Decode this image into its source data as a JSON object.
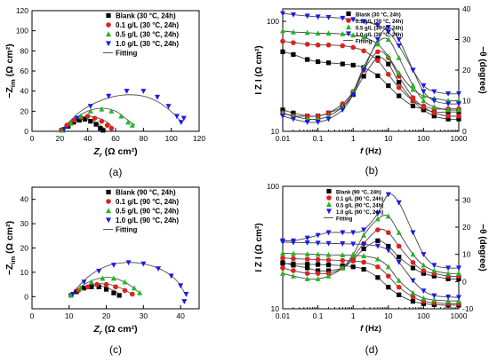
{
  "panels": [
    {
      "caption": "(a)",
      "chart_data": {
        "type": "scatter",
        "xlabel_main": "Z",
        "xlabel_sub": "r",
        "xlabel_unit": " (Ω cm²)",
        "ylabel_prefix": "−Z",
        "ylabel_sub": "im",
        "ylabel_unit": " (Ω cm²)",
        "xlim": [
          0,
          120
        ],
        "ylim": [
          0,
          120
        ],
        "xticks": [
          0,
          20,
          40,
          60,
          80,
          100,
          120
        ],
        "yticks": [
          0,
          20,
          40,
          60,
          80,
          100,
          120
        ],
        "legend_position": "top-right",
        "fitting_label": "Fitting",
        "series": [
          {
            "name": "Blank (30 °C, 24h)",
            "marker": "square",
            "color": "#000000",
            "x": [
              22,
              26,
              30,
              34,
              38,
              42,
              46,
              49,
              51
            ],
            "y": [
              1,
              5,
              9,
              11,
              12,
              10,
              7,
              3,
              1
            ]
          },
          {
            "name": "0.1 g/L (30 °C, 24h)",
            "marker": "circle",
            "color": "#e0201b",
            "x": [
              21,
              25,
              30,
              35,
              40,
              45,
              50,
              54,
              57
            ],
            "y": [
              1,
              6,
              11,
              14,
              15,
              13,
              10,
              6,
              3
            ]
          },
          {
            "name": "0.5 g/L (30 °C, 24h)",
            "marker": "triangle",
            "color": "#1fb81f",
            "x": [
              22,
              28,
              35,
              42,
              50,
              57,
              64,
              69,
              72
            ],
            "y": [
              1,
              8,
              15,
              20,
              22,
              20,
              15,
              9,
              6
            ]
          },
          {
            "name": "1.0 g/L (30 °C, 24h)",
            "marker": "triangle-down",
            "color": "#1a1aee",
            "x": [
              23,
              32,
              42,
              55,
              68,
              80,
              90,
              98,
              104,
              107,
              109
            ],
            "y": [
              2,
              13,
              25,
              35,
              40,
              40,
              34,
              25,
              15,
              9,
              13
            ]
          }
        ],
        "fits": [
          {
            "x": [
              20,
              26,
              32,
              38,
              44,
              50,
              53
            ],
            "y": [
              0,
              6,
              10,
              12,
              10,
              5,
              1
            ]
          },
          {
            "x": [
              20,
              27,
              34,
              41,
              48,
              55,
              58
            ],
            "y": [
              0,
              8,
              13,
              15,
              13,
              8,
              3
            ]
          },
          {
            "x": [
              20,
              30,
              40,
              50,
              60,
              68,
              74
            ],
            "y": [
              0,
              12,
              20,
              23,
              20,
              12,
              6
            ]
          },
          {
            "x": [
              20,
              35,
              50,
              65,
              80,
              92,
              102,
              108
            ],
            "y": [
              0,
              20,
              31,
              36,
              35,
              28,
              17,
              8
            ]
          }
        ]
      }
    },
    {
      "caption": "(b)",
      "chart_data": {
        "type": "line",
        "xlabel_main": "f",
        "xlabel_unit": " (Hz)",
        "ylabel": "I Z I (Ω cm²)",
        "y2label": "−θ (degree)",
        "xscale": "log",
        "xlim": [
          0.01,
          1000
        ],
        "xticks": [
          0.01,
          0.1,
          1,
          10,
          100,
          1000
        ],
        "xtick_labels": [
          "0.01",
          "0.1",
          "1",
          "10",
          "100",
          "1000"
        ],
        "yscale": "log",
        "ylim": [
          10,
          130
        ],
        "yticks": [
          10,
          100
        ],
        "ytick_labels": [
          "10",
          "100"
        ],
        "y2lim": [
          0,
          40
        ],
        "y2ticks": [
          0,
          10,
          20,
          30,
          40
        ],
        "legend_position": "top-left",
        "fitting_label": "Fitting",
        "freq": [
          0.01,
          0.02,
          0.05,
          0.1,
          0.2,
          0.5,
          1,
          2,
          5,
          10,
          20,
          50,
          100,
          200,
          500,
          1000
        ],
        "series": [
          {
            "name": "Blank (30 °C, 24h)",
            "marker": "square",
            "color": "#000000",
            "modulus": [
              53,
              50,
              45,
              43,
              42,
              41,
              40,
              38,
              32,
              26,
              21,
              17,
              16,
              15,
              15,
              15
            ],
            "phase": [
              7,
              6,
              5,
              5,
              6,
              8,
              12,
              18,
              24,
              22,
              16,
              10,
              7,
              5,
              4,
              4
            ]
          },
          {
            "name": "0.1 g/L (30 °C, 24h)",
            "marker": "circle",
            "color": "#e0201b",
            "modulus": [
              66,
              64,
              62,
              61,
              61,
              60,
              58,
              54,
              44,
              33,
              25,
              19,
              17,
              16,
              16,
              16
            ],
            "phase": [
              6,
              5,
              5,
              5,
              6,
              9,
              13,
              20,
              26,
              24,
              18,
              11,
              8,
              6,
              5,
              5
            ]
          },
          {
            "name": "0.5 g/L (30 °C, 24h)",
            "marker": "triangle",
            "color": "#1fb81f",
            "modulus": [
              82,
              80,
              79,
              78,
              78,
              77,
              75,
              72,
              62,
              48,
              34,
              24,
              21,
              20,
              19,
              19
            ],
            "phase": [
              6,
              5,
              4,
              4,
              5,
              8,
              13,
              21,
              29,
              30,
              24,
              15,
              10,
              8,
              7,
              7
            ]
          },
          {
            "name": "1.0 g/L (30 °C, 24h)",
            "marker": "triangle-down",
            "color": "#1a1aee",
            "modulus": [
              118,
              115,
              112,
              110,
              109,
              107,
              104,
              100,
              92,
              80,
              60,
              36,
              26,
              23,
              22,
              22
            ],
            "phase": [
              5,
              4,
              3,
              3,
              4,
              7,
              12,
              20,
              30,
              34,
              30,
              20,
              13,
              10,
              9,
              9
            ]
          }
        ]
      }
    },
    {
      "caption": "(c)",
      "chart_data": {
        "type": "scatter",
        "xlabel_main": "Z",
        "xlabel_sub": "r",
        "xlabel_unit": " (Ω cm²)",
        "ylabel_prefix": "−Z",
        "ylabel_sub": "im",
        "ylabel_unit": " (Ω cm²)",
        "xlim": [
          0,
          45
        ],
        "ylim": [
          -5,
          45
        ],
        "xticks": [
          0,
          10,
          20,
          30,
          40
        ],
        "yticks": [
          0,
          10,
          20,
          30,
          40
        ],
        "legend_position": "top-right",
        "fitting_label": "Fitting",
        "series": [
          {
            "name": "Blank (90 °C, 24h)",
            "marker": "square",
            "color": "#000000",
            "x": [
              10.5,
              12,
              14,
              16,
              18,
              20,
              22,
              23.5
            ],
            "y": [
              0.5,
              2,
              3.5,
              4,
              4,
              3,
              1.5,
              0.5
            ]
          },
          {
            "name": "0.1 g/L (90 °C, 24h)",
            "marker": "circle",
            "color": "#e0201b",
            "x": [
              10.5,
              12.5,
              15,
              17.5,
              20,
              22.5,
              25,
              27
            ],
            "y": [
              0.5,
              2.5,
              4,
              5,
              5,
              4,
              2.5,
              1
            ]
          },
          {
            "name": "0.5 g/L (90 °C, 24h)",
            "marker": "triangle",
            "color": "#1fb81f",
            "x": [
              10.5,
              13,
              16,
              19,
              22,
              25,
              27.5,
              29
            ],
            "y": [
              0.5,
              3.5,
              6,
              7.5,
              7.5,
              6,
              3.5,
              1.5
            ]
          },
          {
            "name": "1.0 g/L (90 °C, 24h)",
            "marker": "triangle-down",
            "color": "#1a1aee",
            "x": [
              11,
              14,
              18,
              22,
              26,
              30,
              34,
              37.5,
              40,
              41.5,
              41
            ],
            "y": [
              1,
              6,
              10.5,
              13,
              14,
              13.5,
              11.5,
              8.5,
              4.5,
              1,
              -2
            ]
          }
        ],
        "fits": [
          {
            "x": [
              10,
              13,
              16,
              19,
              22,
              24
            ],
            "y": [
              0,
              3,
              4.3,
              4.2,
              2.5,
              0.5
            ]
          },
          {
            "x": [
              10,
              13,
              16.5,
              20,
              23.5,
              27
            ],
            "y": [
              0,
              3.3,
              5,
              5.2,
              3.8,
              1
            ]
          },
          {
            "x": [
              10,
              13.5,
              17.5,
              21.5,
              25.5,
              29
            ],
            "y": [
              0,
              4.5,
              7.3,
              7.8,
              5.5,
              1.5
            ]
          },
          {
            "x": [
              10,
              15,
              20,
              25,
              30,
              35,
              39,
              41.5
            ],
            "y": [
              0,
              8,
              12.5,
              14,
              13.5,
              11,
              6.5,
              0.5
            ]
          }
        ]
      }
    },
    {
      "caption": "(d)",
      "chart_data": {
        "type": "line",
        "xlabel_main": "f",
        "xlabel_unit": " (Hz)",
        "ylabel": "I Z I (Ω cm²)",
        "y2label": "−θ (degree)",
        "xscale": "log",
        "xlim": [
          0.01,
          1000
        ],
        "xticks": [
          0.01,
          0.1,
          1,
          10,
          100,
          1000
        ],
        "xtick_labels": [
          "0.01",
          "0.1",
          "1",
          "10",
          "100",
          "1000"
        ],
        "yscale": "log",
        "ylim": [
          10,
          100
        ],
        "yticks": [
          10,
          100
        ],
        "ytick_labels": [
          "10",
          "100"
        ],
        "y2lim": [
          -10,
          35
        ],
        "y2ticks": [
          -10,
          0,
          10,
          20,
          30
        ],
        "legend_position": "top-left",
        "fitting_label": "Fitting",
        "freq": [
          0.01,
          0.02,
          0.05,
          0.1,
          0.2,
          0.5,
          1,
          2,
          5,
          10,
          20,
          50,
          100,
          200,
          500,
          1000
        ],
        "series": [
          {
            "name": "Blank (90 °C, 24h)",
            "marker": "square",
            "color": "#000000",
            "modulus": [
              23.5,
              23.3,
              23.1,
              23,
              22.8,
              22.5,
              22,
              21,
              18,
              15,
              13,
              11.5,
              11,
              10.8,
              10.7,
              10.7
            ],
            "phase": [
              7,
              6,
              5,
              4,
              4,
              5,
              8,
              12,
              15,
              13,
              9,
              5,
              3,
              2,
              1,
              1
            ]
          },
          {
            "name": "0.1 g/L (90 °C, 24h)",
            "marker": "circle",
            "color": "#e0201b",
            "modulus": [
              26,
              25.7,
              25.4,
              25.2,
              25,
              24.8,
              24.5,
              24,
              22,
              18.5,
              15,
              12.5,
              11.5,
              11.2,
              11,
              11
            ],
            "phase": [
              5,
              4,
              3,
              3,
              3,
              5,
              9,
              14,
              19,
              18,
              13,
              7,
              4,
              3,
              2,
              2
            ]
          },
          {
            "name": "0.5 g/L (90 °C, 24h)",
            "marker": "triangle",
            "color": "#1fb81f",
            "modulus": [
              28.5,
              28.2,
              28,
              27.8,
              27.6,
              27.5,
              27.3,
              27,
              25.5,
              22,
              17,
              13.5,
              12.2,
              11.8,
              11.6,
              11.6
            ],
            "phase": [
              3,
              2,
              1,
              1,
              2,
              5,
              10,
              17,
              23,
              24,
              18,
              10,
              6,
              4,
              3,
              3
            ]
          },
          {
            "name": "1.0 g/L (90 °C, 24h)",
            "marker": "triangle-down",
            "color": "#1a1aee",
            "modulus": [
              35,
              34.8,
              34.6,
              34.4,
              34.2,
              34,
              33.8,
              33.5,
              32.5,
              30,
              24,
              17,
              14,
              12.8,
              12.5,
              12.4
            ],
            "phase": [
              15,
              15,
              16,
              17,
              18,
              18,
              18,
              19,
              25,
              32,
              29,
              18,
              10,
              6,
              5,
              5
            ]
          }
        ]
      }
    }
  ]
}
